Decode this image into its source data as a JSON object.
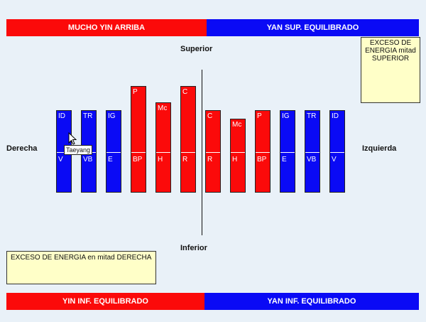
{
  "bands": {
    "top_left": "MUCHO YIN ARRIBA",
    "top_right": "YAN SUP. EQUILIBRADO",
    "bottom_left": "YIN INF. EQUILIBRADO",
    "bottom_right": "YAN INF. EQUILIBRADO"
  },
  "labels": {
    "superior": "Superior",
    "inferior": "Inferior",
    "derecha": "Derecha",
    "izquierda": "Izquierda"
  },
  "notes": {
    "top_right": "EXCESO DE ENERGIA mitad SUPERIOR",
    "bottom_left": "EXCESO DE ENERGIA en  mitad DERECHA"
  },
  "tooltip": "Taeyang",
  "colors": {
    "red": "#fb0a0a",
    "blue": "#0a0af5"
  },
  "bars": [
    {
      "top": "ID",
      "bottom": "V",
      "color": "blue",
      "level": "normal"
    },
    {
      "top": "TR",
      "bottom": "VB",
      "color": "blue",
      "level": "normal"
    },
    {
      "top": "IG",
      "bottom": "E",
      "color": "blue",
      "level": "normal"
    },
    {
      "top": "P",
      "bottom": "BP",
      "color": "red",
      "level": "high"
    },
    {
      "top": "Mc",
      "bottom": "H",
      "color": "red",
      "level": "mid"
    },
    {
      "top": "C",
      "bottom": "R",
      "color": "red",
      "level": "high"
    },
    {
      "top": "C",
      "bottom": "R",
      "color": "red",
      "level": "normal"
    },
    {
      "top": "Mc",
      "bottom": "H",
      "color": "red",
      "level": "low"
    },
    {
      "top": "P",
      "bottom": "BP",
      "color": "red",
      "level": "normal"
    },
    {
      "top": "IG",
      "bottom": "E",
      "color": "blue",
      "level": "normal"
    },
    {
      "top": "TR",
      "bottom": "VB",
      "color": "blue",
      "level": "normal"
    },
    {
      "top": "ID",
      "bottom": "V",
      "color": "blue",
      "level": "normal"
    }
  ]
}
